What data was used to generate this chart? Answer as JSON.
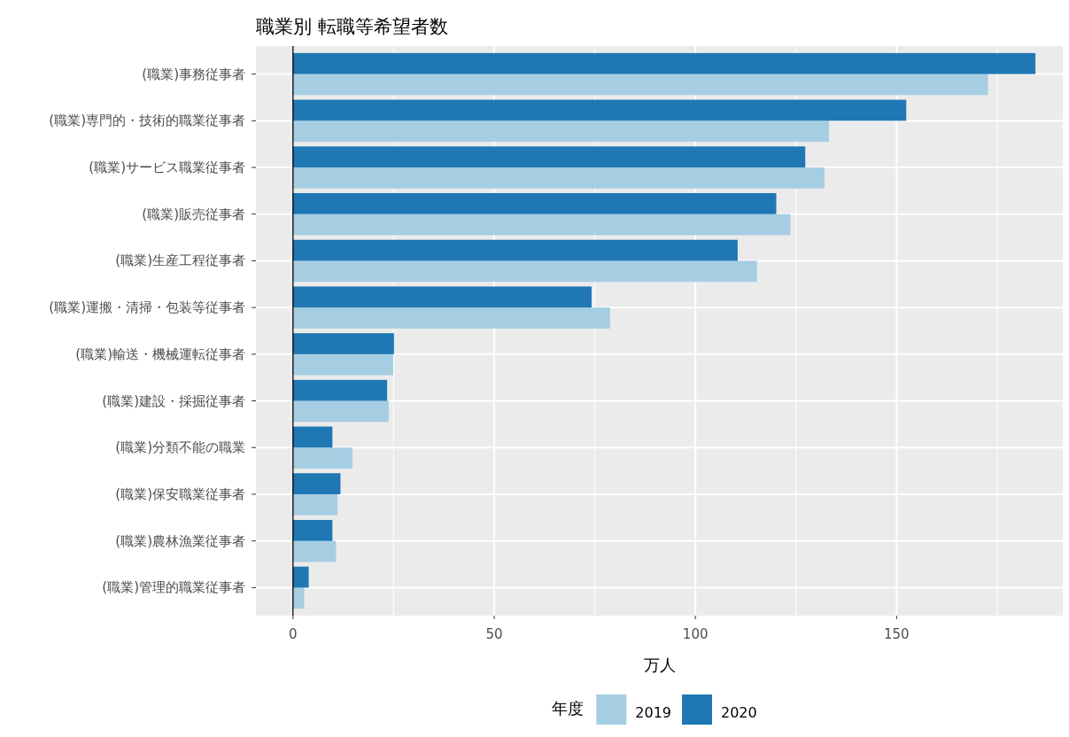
{
  "chart_data": {
    "type": "bar",
    "orientation": "horizontal",
    "title": "職業別 転職等希望者数",
    "xlabel": "万人",
    "legend_title": "年度",
    "legend": "bottom",
    "grid": true,
    "categories": [
      "(職業)事務従事者",
      "(職業)専門的・技術的職業従事者",
      "(職業)サービス職業従事者",
      "(職業)販売従事者",
      "(職業)生産工程従事者",
      "(職業)運搬・清掃・包装等従事者",
      "(職業)輸送・機械運転従事者",
      "(職業)建設・採掘従事者",
      "(職業)分類不能の職業",
      "(職業)保安職業従事者",
      "(職業)農林漁業従事者",
      "(職業)管理的職業従事者"
    ],
    "series": [
      {
        "name": "2019",
        "color": "#a6cee3",
        "values": [
          172.7,
          133.2,
          132.1,
          123.6,
          115.3,
          78.8,
          24.9,
          23.8,
          14.8,
          11.1,
          10.7,
          2.8
        ]
      },
      {
        "name": "2020",
        "color": "#1f78b4",
        "values": [
          184.5,
          152.4,
          127.3,
          120.1,
          110.5,
          74.2,
          25.1,
          23.4,
          9.8,
          11.8,
          9.8,
          3.9
        ]
      }
    ],
    "xlim": [
      -9.2,
      191.3
    ],
    "xticks": [
      0,
      {
        "value": 25,
        "label": null
      },
      50,
      {
        "value": 75,
        "label": null
      },
      100,
      {
        "value": 125,
        "label": null
      },
      150,
      {
        "value": 175,
        "label": null
      }
    ],
    "ref_lines": [
      {
        "axis": "x",
        "value": 0,
        "color": "#000000"
      }
    ]
  }
}
